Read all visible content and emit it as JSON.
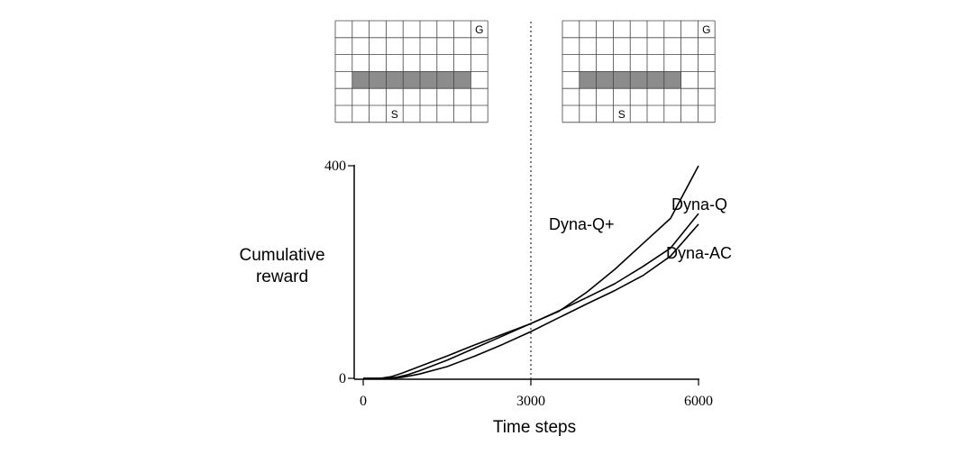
{
  "mazes": [
    {
      "name": "maze-before",
      "cols": 9,
      "rows": 6,
      "wall": {
        "row": 3,
        "col_start": 1,
        "col_end": 8
      },
      "start": {
        "row": 5,
        "col": 3,
        "label": "S"
      },
      "goal": {
        "row": 0,
        "col": 8,
        "label": "G"
      }
    },
    {
      "name": "maze-after",
      "cols": 9,
      "rows": 6,
      "wall": {
        "row": 3,
        "col_start": 1,
        "col_end": 7
      },
      "start": {
        "row": 5,
        "col": 3,
        "label": "S"
      },
      "goal": {
        "row": 0,
        "col": 8,
        "label": "G"
      }
    }
  ],
  "chart_data": {
    "type": "line",
    "title": "",
    "xlabel": "Time steps",
    "ylabel": "Cumulative reward",
    "xlim": [
      0,
      6000
    ],
    "ylim": [
      0,
      400
    ],
    "xticks": [
      "0",
      "3000",
      "6000"
    ],
    "yticks": [
      "0",
      "400"
    ],
    "vline_x": 3000,
    "grid": false,
    "series": [
      {
        "name": "Dyna-Q+",
        "x": [
          0,
          300,
          500,
          700,
          1000,
          1500,
          2000,
          2500,
          3000,
          3500,
          4000,
          4500,
          5000,
          5500,
          6000
        ],
        "y": [
          0,
          0,
          3,
          10,
          22,
          42,
          63,
          83,
          103,
          126,
          162,
          205,
          253,
          301,
          400
        ]
      },
      {
        "name": "Dyna-Q",
        "x": [
          0,
          400,
          600,
          800,
          1000,
          1500,
          2000,
          2500,
          3000,
          3500,
          4000,
          4500,
          5000,
          5500,
          6000
        ],
        "y": [
          0,
          0,
          2,
          7,
          14,
          34,
          57,
          80,
          103,
          127,
          152,
          178,
          210,
          245,
          310
        ]
      },
      {
        "name": "Dyna-AC",
        "x": [
          0,
          500,
          700,
          1000,
          1500,
          2000,
          2500,
          3000,
          3500,
          4000,
          4500,
          5000,
          5500,
          6000
        ],
        "y": [
          0,
          0,
          2,
          8,
          22,
          42,
          64,
          88,
          114,
          140,
          165,
          193,
          230,
          290
        ]
      }
    ]
  }
}
